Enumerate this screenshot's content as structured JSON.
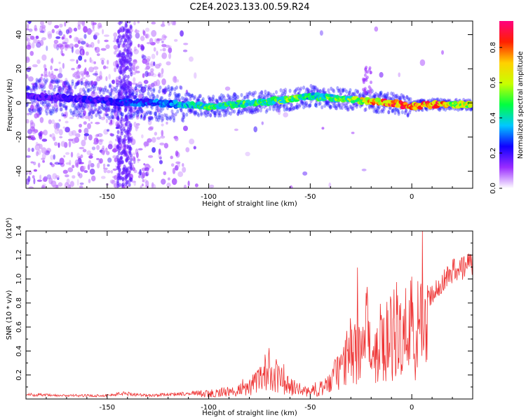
{
  "title": "C2E4.2023.133.00.59.R24",
  "chart_data": [
    {
      "type": "heatmap",
      "xlabel": "Height of straight line (km)",
      "ylabel": "Frequency (Hz)",
      "xlim": [
        -190,
        30
      ],
      "ylim": [
        -50,
        48
      ],
      "xticks": [
        -150,
        -100,
        -50,
        0
      ],
      "yticks": [
        -40,
        -20,
        0,
        20,
        40
      ],
      "colorbar": {
        "label": "Normalized spectral amplitude",
        "range": [
          0,
          0.95
        ],
        "ticks": [
          0.0,
          0.2,
          0.4,
          0.6,
          0.8
        ],
        "colormap": [
          "#ffffff",
          "#9a2cff",
          "#1000ff",
          "#00c8ff",
          "#00ff40",
          "#c8ff00",
          "#ffd000",
          "#ff2000",
          "#ff0080"
        ]
      },
      "ridge": {
        "x": [
          -190,
          -170,
          -150,
          -130,
          -110,
          -100,
          -90,
          -80,
          -70,
          -60,
          -50,
          -40,
          -30,
          -20,
          -10,
          0,
          10,
          20,
          30
        ],
        "freq": [
          4,
          3,
          1,
          0,
          -1,
          -2,
          -1,
          0,
          1,
          2,
          4,
          3,
          2,
          1,
          0,
          -2,
          -1,
          -1,
          -1
        ],
        "amplitude": [
          0.18,
          0.2,
          0.25,
          0.3,
          0.4,
          0.5,
          0.45,
          0.5,
          0.5,
          0.55,
          0.45,
          0.5,
          0.55,
          0.75,
          0.9,
          0.8,
          0.85,
          0.7,
          0.65
        ]
      }
    },
    {
      "type": "line",
      "xlabel": "Height of straight line (km)",
      "ylabel": "SNR (10 * v/v)",
      "scale_label": "(x10⁴)",
      "xlim": [
        -190,
        30
      ],
      "ylim": [
        0,
        1.4
      ],
      "xticks": [
        -150,
        -100,
        -50,
        0
      ],
      "yticks": [
        0.2,
        0.4,
        0.6,
        0.8,
        1.0,
        1.2,
        1.4
      ],
      "series": [
        {
          "color": "#ee3333",
          "x": [
            -190,
            -175,
            -160,
            -150,
            -142,
            -130,
            -120,
            -110,
            -100,
            -95,
            -90,
            -85,
            -80,
            -75,
            -72,
            -70,
            -68,
            -65,
            -60,
            -55,
            -50,
            -45,
            -40,
            -38,
            -35,
            -32,
            -30,
            -28,
            -26,
            -24,
            -22,
            -20,
            -18,
            -15,
            -12,
            -10,
            -8,
            -5,
            -3,
            -1,
            0,
            1,
            3,
            5,
            8,
            10,
            12,
            15,
            18,
            20,
            22,
            25,
            28,
            30
          ],
          "y": [
            0.04,
            0.03,
            0.03,
            0.03,
            0.05,
            0.03,
            0.04,
            0.05,
            0.06,
            0.07,
            0.08,
            0.1,
            0.14,
            0.2,
            0.3,
            0.35,
            0.3,
            0.22,
            0.14,
            0.1,
            0.08,
            0.12,
            0.18,
            0.25,
            0.35,
            0.45,
            0.55,
            0.5,
            0.65,
            0.6,
            0.75,
            0.55,
            0.6,
            0.65,
            0.7,
            0.72,
            0.68,
            0.75,
            0.8,
            0.7,
            0.9,
            0.4,
            0.75,
            0.8,
            0.85,
            0.9,
            0.95,
            1.0,
            1.05,
            1.1,
            1.08,
            1.12,
            1.15,
            1.17
          ]
        }
      ]
    }
  ]
}
